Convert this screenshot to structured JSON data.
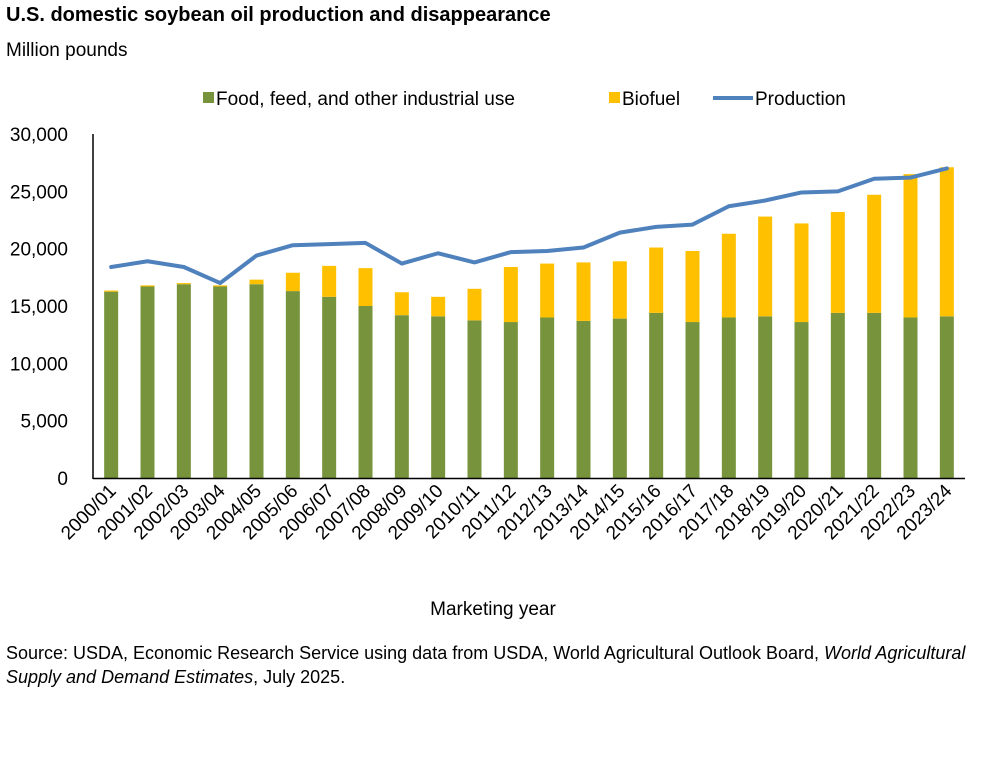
{
  "title": "U.S. domestic soybean oil production and disappearance",
  "subtitle": "Million pounds",
  "source_prefix": "Source: USDA, Economic Research Service using data from USDA, World Agricultural Outlook Board, ",
  "source_italic": "World Agricultural Supply and Demand Estimates",
  "source_suffix": ", July 2025.",
  "chart_data": {
    "type": "bar",
    "stacked": true,
    "title": "U.S. domestic soybean oil production and disappearance",
    "ylabel": "Million pounds",
    "xlabel": "Marketing year",
    "ylim": [
      0,
      30000
    ],
    "yticks": [
      0,
      5000,
      10000,
      15000,
      20000,
      25000,
      30000
    ],
    "ytick_labels": [
      "0",
      "5,000",
      "10,000",
      "15,000",
      "20,000",
      "25,000",
      "30,000"
    ],
    "grid": false,
    "legend_position": "top",
    "categories": [
      "2000/01",
      "2001/02",
      "2002/03",
      "2003/04",
      "2004/05",
      "2005/06",
      "2006/07",
      "2007/08",
      "2008/09",
      "2009/10",
      "2010/11",
      "2011/12",
      "2012/13",
      "2013/14",
      "2014/15",
      "2015/16",
      "2016/17",
      "2017/18",
      "2018/19",
      "2019/20",
      "2020/21",
      "2021/22",
      "2022/23",
      "2023/24"
    ],
    "series": [
      {
        "name": "Food, feed, and other industrial use",
        "type": "bar",
        "color": "#77933C",
        "values": [
          16250,
          16700,
          16900,
          16700,
          16900,
          16300,
          15800,
          15000,
          14200,
          14100,
          13750,
          13600,
          14000,
          13700,
          13900,
          14400,
          13600,
          14000,
          14100,
          13600,
          14400,
          14400,
          14000,
          14100
        ]
      },
      {
        "name": "Biofuel",
        "type": "bar",
        "color": "#FFC000",
        "values": [
          100,
          100,
          100,
          100,
          400,
          1600,
          2700,
          3300,
          2000,
          1700,
          2750,
          4800,
          4700,
          5100,
          5000,
          5700,
          6200,
          7300,
          8700,
          8600,
          8800,
          10300,
          12500,
          13000
        ]
      },
      {
        "name": "Production",
        "type": "line",
        "color": "#4F81BD",
        "values": [
          18400,
          18900,
          18400,
          17000,
          19400,
          20300,
          20400,
          20500,
          18700,
          19600,
          18800,
          19700,
          19800,
          20100,
          21400,
          21900,
          22100,
          23700,
          24200,
          24900,
          25000,
          26100,
          26200,
          27000
        ]
      }
    ]
  }
}
